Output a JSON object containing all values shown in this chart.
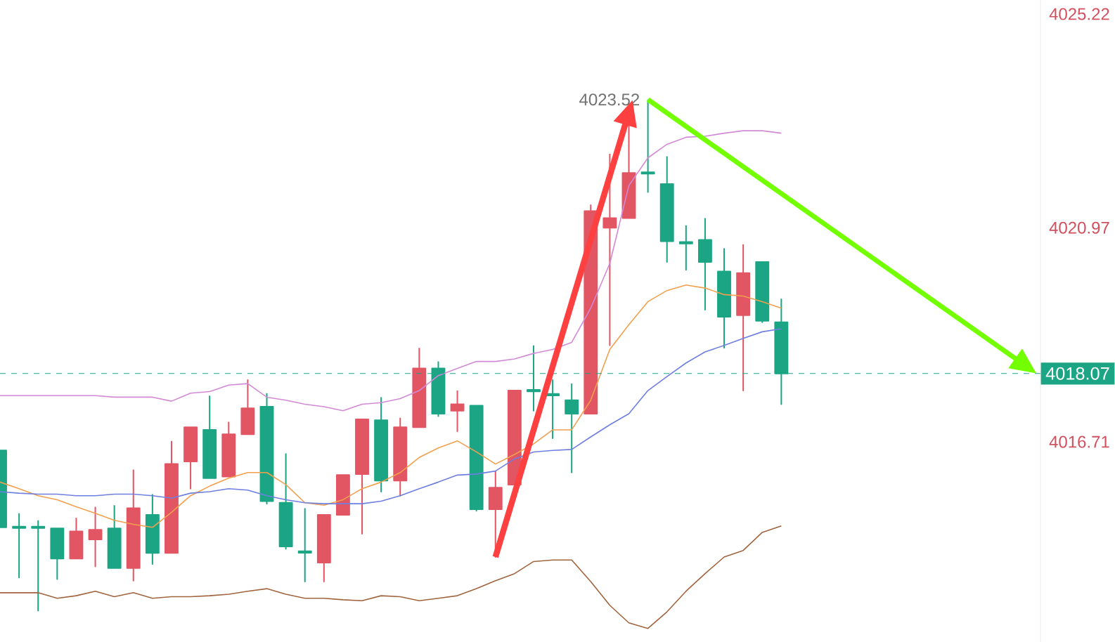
{
  "chart_data": {
    "type": "candlestick",
    "categories": [
      null,
      null,
      null,
      null,
      null,
      null,
      null,
      null,
      null,
      null,
      null,
      null,
      null,
      null,
      null,
      null,
      null,
      null,
      null,
      null,
      null,
      null,
      null,
      null,
      null,
      null,
      null,
      null,
      null,
      null,
      null,
      null,
      null,
      null,
      null,
      null,
      null,
      null,
      null,
      null,
      null,
      null
    ],
    "ohlc": [
      [
        4016.54,
        4016.54,
        4015.01,
        4015.01
      ],
      [
        4015.01,
        4015.29,
        4014.01,
        4015.01
      ],
      [
        4015.01,
        4015.15,
        4013.35,
        4015.01
      ],
      [
        4014.99,
        4014.99,
        4013.98,
        4014.39
      ],
      [
        4014.39,
        4015.2,
        4014.39,
        4014.93
      ],
      [
        4014.77,
        4015.42,
        4014.23,
        4014.96
      ],
      [
        4014.99,
        4015.45,
        4014.2,
        4014.2
      ],
      [
        4014.2,
        4016.16,
        4013.95,
        4015.39
      ],
      [
        4015.26,
        4015.67,
        4014.28,
        4014.5
      ],
      [
        4014.5,
        4016.73,
        4014.5,
        4016.27
      ],
      [
        4016.32,
        4017.0,
        4015.78,
        4017.0
      ],
      [
        4016.95,
        4017.63,
        4015.99,
        4015.99
      ],
      [
        4016.02,
        4017.11,
        4016.02,
        4016.86
      ],
      [
        4016.86,
        4017.95,
        4016.86,
        4017.38
      ],
      [
        4017.41,
        4017.68,
        4015.48,
        4015.53
      ],
      [
        4015.5,
        4016.48,
        4014.58,
        4014.63
      ],
      [
        4014.52,
        4015.39,
        4013.93,
        4014.52
      ],
      [
        4014.31,
        4015.26,
        4013.93,
        4015.26
      ],
      [
        4015.26,
        4016.05,
        4015.26,
        4016.05
      ],
      [
        4016.07,
        4017.16,
        4014.88,
        4017.16
      ],
      [
        4017.14,
        4017.6,
        4015.72,
        4015.94
      ],
      [
        4015.94,
        4017.19,
        4015.64,
        4017.0
      ],
      [
        4017.0,
        4018.58,
        4017.0,
        4018.17
      ],
      [
        4018.17,
        4018.31,
        4017.22,
        4017.27
      ],
      [
        4017.33,
        4017.73,
        4016.92,
        4017.46
      ],
      [
        4017.43,
        4017.43,
        4015.34,
        4015.37
      ],
      [
        4015.37,
        4016.13,
        4014.42,
        4015.8
      ],
      [
        4015.86,
        4017.73,
        4015.86,
        4017.73
      ],
      [
        4017.73,
        4018.63,
        4017.33,
        4017.73
      ],
      [
        4017.65,
        4017.95,
        4016.78,
        4017.65
      ],
      [
        4017.54,
        4017.87,
        4016.1,
        4017.27
      ],
      [
        4017.27,
        4021.43,
        4017.27,
        4021.3
      ],
      [
        4020.97,
        4022.44,
        4018.63,
        4021.16
      ],
      [
        4021.16,
        4023.45,
        4021.16,
        4022.06
      ],
      [
        4022.06,
        4023.52,
        4021.68,
        4022.06
      ],
      [
        4021.84,
        4022.39,
        4020.29,
        4020.7
      ],
      [
        4020.67,
        4021.02,
        4020.13,
        4020.67
      ],
      [
        4020.73,
        4021.16,
        4019.34,
        4020.29
      ],
      [
        4020.1,
        4020.56,
        4018.58,
        4019.2
      ],
      [
        4019.23,
        4020.64,
        4017.73,
        4020.07
      ],
      [
        4020.29,
        4020.29,
        4019.09,
        4019.12
      ],
      [
        4019.09,
        4019.56,
        4017.46,
        4018.07
      ]
    ],
    "colors": [
      "#1ba585",
      "#1ba585",
      "#1ba585",
      "#1ba585",
      "#e25563",
      "#e25563",
      "#1ba585",
      "#e25563",
      "#1ba585",
      "#e25563",
      "#e25563",
      "#1ba585",
      "#e25563",
      "#e25563",
      "#1ba585",
      "#1ba585",
      "#1ba585",
      "#e25563",
      "#e25563",
      "#e25563",
      "#1ba585",
      "#e25563",
      "#e25563",
      "#1ba585",
      "#e25563",
      "#1ba585",
      "#e25563",
      "#e25563",
      "#1ba585",
      "#1ba585",
      "#1ba585",
      "#e25563",
      "#e25563",
      "#e25563",
      "#1ba585",
      "#1ba585",
      "#1ba585",
      "#1ba585",
      "#1ba585",
      "#e25563",
      "#1ba585",
      "#1ba585"
    ],
    "series": [
      {
        "type": "line",
        "color": "#f2a04e",
        "values": [
          4015.91,
          4015.78,
          4015.64,
          4015.56,
          4015.42,
          4015.29,
          4015.15,
          4015.07,
          4015.01,
          4015.31,
          4015.64,
          4015.83,
          4015.99,
          4016.1,
          4016.1,
          4015.86,
          4015.5,
          4015.45,
          4015.56,
          4015.78,
          4015.91,
          4016.1,
          4016.4,
          4016.59,
          4016.73,
          4016.51,
          4016.27,
          4016.46,
          4016.67,
          4016.95,
          4016.95,
          4017.54,
          4018.55,
          4019.04,
          4019.5,
          4019.72,
          4019.83,
          4019.77,
          4019.64,
          4019.61,
          4019.5,
          4019.37
        ]
      },
      {
        "type": "line",
        "color": "#6f7fe0",
        "values": [
          4015.72,
          4015.69,
          4015.67,
          4015.67,
          4015.64,
          4015.64,
          4015.67,
          4015.67,
          4015.64,
          4015.59,
          4015.69,
          4015.72,
          4015.78,
          4015.75,
          4015.64,
          4015.56,
          4015.5,
          4015.48,
          4015.48,
          4015.48,
          4015.53,
          4015.64,
          4015.78,
          4015.91,
          4016.05,
          4016.07,
          4016.13,
          4016.37,
          4016.51,
          4016.54,
          4016.56,
          4016.81,
          4017.05,
          4017.27,
          4017.73,
          4018.01,
          4018.28,
          4018.5,
          4018.63,
          4018.77,
          4018.9,
          4018.96
        ]
      },
      {
        "type": "line",
        "color": "#d38ad6",
        "values": [
          4017.63,
          4017.63,
          4017.63,
          4017.63,
          4017.63,
          4017.63,
          4017.6,
          4017.6,
          4017.6,
          4017.52,
          4017.68,
          4017.71,
          4017.84,
          4017.87,
          4017.6,
          4017.54,
          4017.46,
          4017.41,
          4017.33,
          4017.46,
          4017.49,
          4017.57,
          4017.73,
          4018.03,
          4018.17,
          4018.31,
          4018.31,
          4018.36,
          4018.47,
          4018.55,
          4018.69,
          4019.37,
          4020.26,
          4021.81,
          4022.36,
          4022.63,
          4022.77,
          4022.79,
          4022.85,
          4022.9,
          4022.9,
          4022.85
        ]
      },
      {
        "type": "line",
        "color": "#a0643e",
        "values": [
          4013.71,
          4013.71,
          4013.71,
          4013.6,
          4013.65,
          4013.74,
          4013.63,
          4013.71,
          4013.6,
          4013.63,
          4013.63,
          4013.65,
          4013.68,
          4013.74,
          4013.79,
          4013.68,
          4013.6,
          4013.6,
          4013.57,
          4013.55,
          4013.65,
          4013.63,
          4013.55,
          4013.6,
          4013.65,
          4013.79,
          4013.95,
          4014.09,
          4014.33,
          4014.36,
          4014.36,
          4013.93,
          4013.46,
          4013.11,
          4013.0,
          4013.33,
          4013.74,
          4014.09,
          4014.42,
          4014.55,
          4014.91,
          4015.04
        ]
      }
    ],
    "ylim": [
      4012.73,
      4025.5
    ],
    "yticks": [
      4016.71,
      4020.97,
      4025.22
    ],
    "ref_lines": [
      {
        "axis": "y",
        "value": 4018.07,
        "label": "4018.07",
        "color": "#1ba585",
        "line_style": "dashed"
      }
    ],
    "annotations": [
      "4023.52"
    ]
  }
}
